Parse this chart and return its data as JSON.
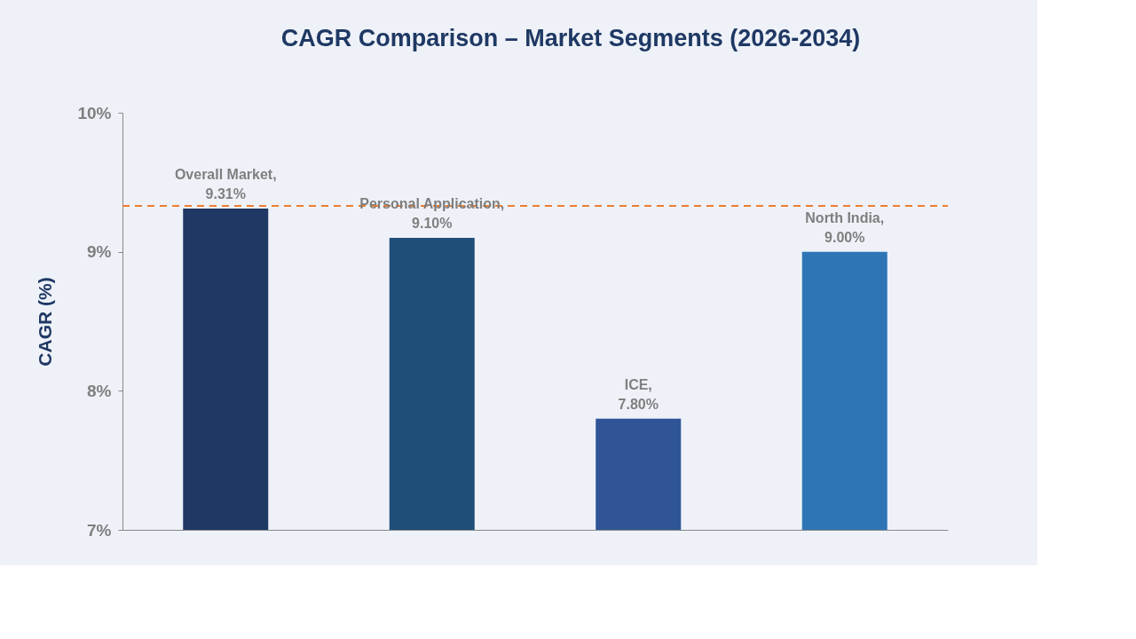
{
  "chart_data": {
    "type": "bar",
    "title": "CAGR Comparison – Market Segments (2026-2034)",
    "ylabel": "CAGR (%)",
    "categories": [
      null,
      null,
      null,
      null
    ],
    "values": [
      9.31,
      9.1,
      7.8,
      9.0
    ],
    "colors": [
      "#1f3864",
      "#1f4e79",
      "#2f5597",
      "#2e75b6"
    ],
    "value_labels": [
      "Overall Market,\n9.31%",
      "Personal Application,\n9.10%",
      "ICE,\n7.80%",
      "North India,\n9.00%"
    ],
    "ylim": [
      7,
      10
    ],
    "yticks": [
      {
        "value": 7,
        "label": "7%"
      },
      {
        "value": 8,
        "label": "8%"
      },
      {
        "value": 9,
        "label": "9%"
      },
      {
        "value": 10,
        "label": "10%"
      }
    ],
    "ref_lines": [
      {
        "axis": "y",
        "value": 9.33,
        "color": "#ed7d31",
        "line_style": "dashed"
      }
    ],
    "tick_labels": "y",
    "grid": false
  }
}
